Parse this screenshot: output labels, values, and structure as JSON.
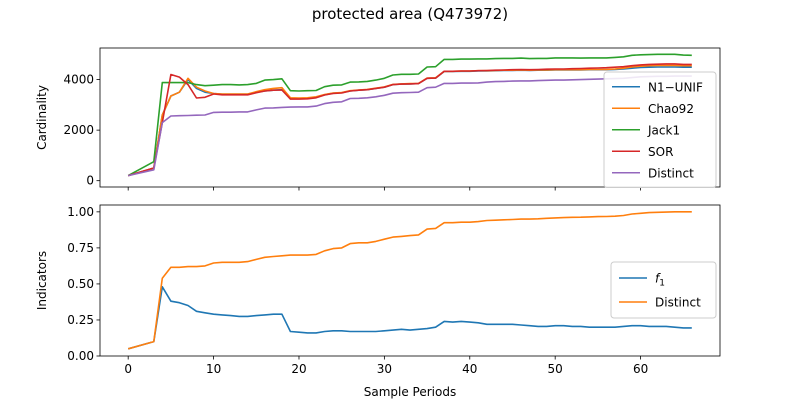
{
  "figure": {
    "title": "protected area (Q473972)"
  },
  "chart_data": [
    {
      "type": "line",
      "ylabel": "Cardinality",
      "xlabel": "",
      "xlim": [
        -3.3,
        69.3
      ],
      "ylim": [
        -250,
        5250
      ],
      "xticks": [
        0,
        10,
        20,
        30,
        40,
        50,
        60
      ],
      "yticks": [
        0,
        2000,
        4000
      ],
      "xtick_labels": [
        "",
        "",
        "",
        "",
        "",
        "",
        ""
      ],
      "ytick_labels": [
        "0",
        "2000",
        "4000"
      ],
      "grid": false,
      "legend_position": "center-right",
      "series": [
        {
          "name": "N1−UNIF",
          "color": "#1f77b4",
          "x": [
            0,
            3,
            4,
            5,
            6,
            7,
            8,
            9,
            10,
            11,
            12,
            13,
            14,
            15,
            16,
            17,
            18,
            19,
            20,
            21,
            22,
            23,
            24,
            25,
            26,
            27,
            28,
            29,
            30,
            31,
            32,
            33,
            34,
            35,
            36,
            37,
            38,
            39,
            40,
            41,
            42,
            43,
            44,
            45,
            46,
            47,
            48,
            49,
            50,
            51,
            52,
            53,
            54,
            55,
            56,
            57,
            58,
            59,
            60,
            61,
            62,
            63,
            64,
            65,
            66
          ],
          "y": [
            200,
            500,
            2600,
            3350,
            3500,
            4000,
            3650,
            3500,
            3450,
            3420,
            3420,
            3420,
            3420,
            3500,
            3550,
            3580,
            3600,
            3250,
            3250,
            3260,
            3300,
            3400,
            3460,
            3480,
            3550,
            3580,
            3600,
            3650,
            3700,
            3800,
            3820,
            3830,
            3840,
            4050,
            4060,
            4320,
            4320,
            4330,
            4330,
            4340,
            4340,
            4350,
            4360,
            4360,
            4370,
            4360,
            4370,
            4370,
            4380,
            4380,
            4380,
            4380,
            4390,
            4390,
            4390,
            4400,
            4420,
            4450,
            4480,
            4490,
            4500,
            4500,
            4500,
            4490,
            4490
          ]
        },
        {
          "name": "Chao92",
          "color": "#ff7f0e",
          "x": [
            0,
            3,
            4,
            5,
            6,
            7,
            8,
            9,
            10,
            11,
            12,
            13,
            14,
            15,
            16,
            17,
            18,
            19,
            20,
            21,
            22,
            23,
            24,
            25,
            26,
            27,
            28,
            29,
            30,
            31,
            32,
            33,
            34,
            35,
            36,
            37,
            38,
            39,
            40,
            41,
            42,
            43,
            44,
            45,
            46,
            47,
            48,
            49,
            50,
            51,
            52,
            53,
            54,
            55,
            56,
            57,
            58,
            59,
            60,
            61,
            62,
            63,
            64,
            65,
            66
          ],
          "y": [
            200,
            500,
            2600,
            3350,
            3500,
            4050,
            3700,
            3550,
            3450,
            3430,
            3430,
            3430,
            3430,
            3520,
            3600,
            3650,
            3680,
            3280,
            3270,
            3280,
            3320,
            3410,
            3470,
            3490,
            3560,
            3590,
            3610,
            3660,
            3710,
            3810,
            3830,
            3840,
            3850,
            4060,
            4070,
            4330,
            4330,
            4340,
            4340,
            4350,
            4350,
            4360,
            4370,
            4370,
            4380,
            4370,
            4380,
            4380,
            4390,
            4390,
            4390,
            4390,
            4400,
            4400,
            4400,
            4420,
            4450,
            4500,
            4530,
            4550,
            4560,
            4560,
            4560,
            4550,
            4550
          ]
        },
        {
          "name": "Jack1",
          "color": "#2ca02c",
          "x": [
            0,
            3,
            4,
            5,
            6,
            7,
            8,
            9,
            10,
            11,
            12,
            13,
            14,
            15,
            16,
            17,
            18,
            19,
            20,
            21,
            22,
            23,
            24,
            25,
            26,
            27,
            28,
            29,
            30,
            31,
            32,
            33,
            34,
            35,
            36,
            37,
            38,
            39,
            40,
            41,
            42,
            43,
            44,
            45,
            46,
            47,
            48,
            49,
            50,
            51,
            52,
            53,
            54,
            55,
            56,
            57,
            58,
            59,
            60,
            61,
            62,
            63,
            64,
            65,
            66
          ],
          "y": [
            200,
            750,
            3880,
            3880,
            3880,
            3880,
            3800,
            3760,
            3780,
            3800,
            3800,
            3790,
            3800,
            3850,
            3980,
            4000,
            4030,
            3560,
            3550,
            3560,
            3570,
            3720,
            3780,
            3790,
            3900,
            3910,
            3930,
            3980,
            4050,
            4180,
            4210,
            4210,
            4220,
            4500,
            4510,
            4800,
            4800,
            4810,
            4810,
            4820,
            4820,
            4830,
            4840,
            4840,
            4850,
            4830,
            4840,
            4840,
            4860,
            4860,
            4860,
            4850,
            4860,
            4860,
            4860,
            4880,
            4900,
            4960,
            4980,
            4990,
            5000,
            5000,
            5000,
            4970,
            4960
          ]
        },
        {
          "name": "SOR",
          "color": "#d62728",
          "x": [
            0,
            3,
            4,
            5,
            6,
            7,
            8,
            9,
            10,
            11,
            12,
            13,
            14,
            15,
            16,
            17,
            18,
            19,
            20,
            21,
            22,
            23,
            24,
            25,
            26,
            27,
            28,
            29,
            30,
            31,
            32,
            33,
            34,
            35,
            36,
            37,
            38,
            39,
            40,
            41,
            42,
            43,
            44,
            45,
            46,
            47,
            48,
            49,
            50,
            51,
            52,
            53,
            54,
            55,
            56,
            57,
            58,
            59,
            60,
            61,
            62,
            63,
            64,
            65,
            66
          ],
          "y": [
            200,
            500,
            2300,
            4200,
            4100,
            3800,
            3270,
            3300,
            3430,
            3400,
            3400,
            3400,
            3400,
            3480,
            3550,
            3580,
            3590,
            3230,
            3230,
            3240,
            3280,
            3390,
            3450,
            3470,
            3550,
            3580,
            3600,
            3650,
            3700,
            3800,
            3820,
            3830,
            3840,
            4050,
            4060,
            4330,
            4330,
            4340,
            4340,
            4350,
            4360,
            4370,
            4380,
            4390,
            4400,
            4390,
            4400,
            4410,
            4420,
            4420,
            4430,
            4440,
            4450,
            4460,
            4470,
            4490,
            4510,
            4550,
            4580,
            4600,
            4610,
            4620,
            4620,
            4600,
            4600
          ]
        },
        {
          "name": "Distinct",
          "color": "#9467bd",
          "x": [
            0,
            3,
            4,
            5,
            6,
            7,
            8,
            9,
            10,
            11,
            12,
            13,
            14,
            15,
            16,
            17,
            18,
            19,
            20,
            21,
            22,
            23,
            24,
            25,
            26,
            27,
            28,
            29,
            30,
            31,
            32,
            33,
            34,
            35,
            36,
            37,
            38,
            39,
            40,
            41,
            42,
            43,
            44,
            45,
            46,
            47,
            48,
            49,
            50,
            51,
            52,
            53,
            54,
            55,
            56,
            57,
            58,
            59,
            60,
            61,
            62,
            63,
            64,
            65,
            66
          ],
          "y": [
            200,
            430,
            2300,
            2560,
            2570,
            2580,
            2590,
            2600,
            2700,
            2710,
            2710,
            2720,
            2720,
            2800,
            2870,
            2880,
            2900,
            2910,
            2920,
            2920,
            2950,
            3050,
            3100,
            3120,
            3250,
            3260,
            3280,
            3320,
            3380,
            3460,
            3480,
            3490,
            3500,
            3680,
            3700,
            3850,
            3850,
            3860,
            3860,
            3870,
            3900,
            3920,
            3930,
            3940,
            3950,
            3950,
            3960,
            3970,
            3980,
            3980,
            3990,
            4000,
            4010,
            4020,
            4030,
            4040,
            4050,
            4080,
            4110,
            4120,
            4130,
            4130,
            4140,
            4140,
            4140
          ]
        }
      ]
    },
    {
      "type": "line",
      "ylabel": "Indicators",
      "xlabel": "Sample Periods",
      "xlim": [
        -3.3,
        69.3
      ],
      "ylim": [
        0.0,
        1.0475
      ],
      "xticks": [
        0,
        10,
        20,
        30,
        40,
        50,
        60
      ],
      "yticks": [
        0.0,
        0.25,
        0.5,
        0.75,
        1.0
      ],
      "xtick_labels": [
        "0",
        "10",
        "20",
        "30",
        "40",
        "50",
        "60"
      ],
      "ytick_labels": [
        "0.00",
        "0.25",
        "0.50",
        "0.75",
        "1.00"
      ],
      "grid": false,
      "legend_position": "center-right",
      "series": [
        {
          "name": "f1",
          "legend_label": "f",
          "legend_subscript": "1",
          "color": "#1f77b4",
          "x": [
            0,
            3,
            4,
            5,
            6,
            7,
            8,
            9,
            10,
            11,
            12,
            13,
            14,
            15,
            16,
            17,
            18,
            19,
            20,
            21,
            22,
            23,
            24,
            25,
            26,
            27,
            28,
            29,
            30,
            31,
            32,
            33,
            34,
            35,
            36,
            37,
            38,
            39,
            40,
            41,
            42,
            43,
            44,
            45,
            46,
            47,
            48,
            49,
            50,
            51,
            52,
            53,
            54,
            55,
            56,
            57,
            58,
            59,
            60,
            61,
            62,
            63,
            64,
            65,
            66
          ],
          "y": [
            0.05,
            0.1,
            0.48,
            0.38,
            0.37,
            0.35,
            0.31,
            0.3,
            0.29,
            0.285,
            0.28,
            0.275,
            0.275,
            0.28,
            0.285,
            0.29,
            0.29,
            0.17,
            0.165,
            0.16,
            0.16,
            0.17,
            0.175,
            0.175,
            0.17,
            0.17,
            0.17,
            0.17,
            0.175,
            0.18,
            0.185,
            0.18,
            0.185,
            0.19,
            0.2,
            0.24,
            0.235,
            0.24,
            0.235,
            0.23,
            0.22,
            0.22,
            0.22,
            0.22,
            0.215,
            0.21,
            0.205,
            0.205,
            0.21,
            0.21,
            0.205,
            0.205,
            0.2,
            0.2,
            0.2,
            0.2,
            0.205,
            0.21,
            0.21,
            0.205,
            0.205,
            0.205,
            0.2,
            0.195,
            0.195
          ]
        },
        {
          "name": "Distinct",
          "legend_label": "Distinct",
          "legend_subscript": "",
          "color": "#ff7f0e",
          "x": [
            0,
            3,
            4,
            5,
            6,
            7,
            8,
            9,
            10,
            11,
            12,
            13,
            14,
            15,
            16,
            17,
            18,
            19,
            20,
            21,
            22,
            23,
            24,
            25,
            26,
            27,
            28,
            29,
            30,
            31,
            32,
            33,
            34,
            35,
            36,
            37,
            38,
            39,
            40,
            41,
            42,
            43,
            44,
            45,
            46,
            47,
            48,
            49,
            50,
            51,
            52,
            53,
            54,
            55,
            56,
            57,
            58,
            59,
            60,
            61,
            62,
            63,
            64,
            65,
            66
          ],
          "y": [
            0.05,
            0.1,
            0.54,
            0.615,
            0.615,
            0.62,
            0.62,
            0.625,
            0.645,
            0.65,
            0.65,
            0.65,
            0.655,
            0.67,
            0.685,
            0.69,
            0.695,
            0.7,
            0.7,
            0.7,
            0.705,
            0.73,
            0.745,
            0.75,
            0.78,
            0.785,
            0.785,
            0.795,
            0.81,
            0.825,
            0.83,
            0.835,
            0.84,
            0.88,
            0.885,
            0.925,
            0.925,
            0.928,
            0.928,
            0.932,
            0.94,
            0.942,
            0.945,
            0.947,
            0.95,
            0.95,
            0.952,
            0.955,
            0.958,
            0.96,
            0.962,
            0.963,
            0.965,
            0.967,
            0.968,
            0.97,
            0.975,
            0.985,
            0.99,
            0.995,
            0.997,
            0.998,
            1.0,
            1.0,
            1.0
          ]
        }
      ]
    }
  ]
}
